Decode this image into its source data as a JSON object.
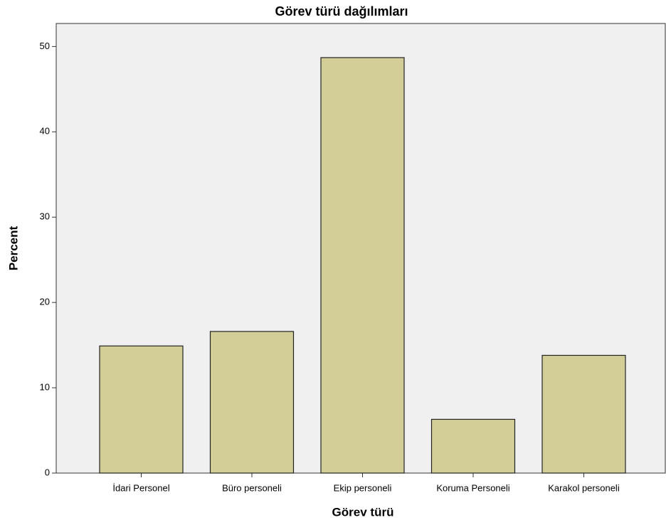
{
  "chart_data": {
    "type": "bar",
    "title": "Görev türü dağılımları",
    "x_label": "Görev türü",
    "y_label": "Percent",
    "categories": [
      "İdari Personel",
      "Büro personeli",
      "Ekip personeli",
      "Koruma Personeli",
      "Karakol personeli"
    ],
    "values": [
      14.9,
      16.6,
      48.7,
      6.3,
      13.8
    ],
    "color": "#d3ce97",
    "ylim": [
      0,
      52.7
    ],
    "yticks": [
      0,
      10,
      20,
      30,
      40,
      50
    ],
    "grid": false
  }
}
